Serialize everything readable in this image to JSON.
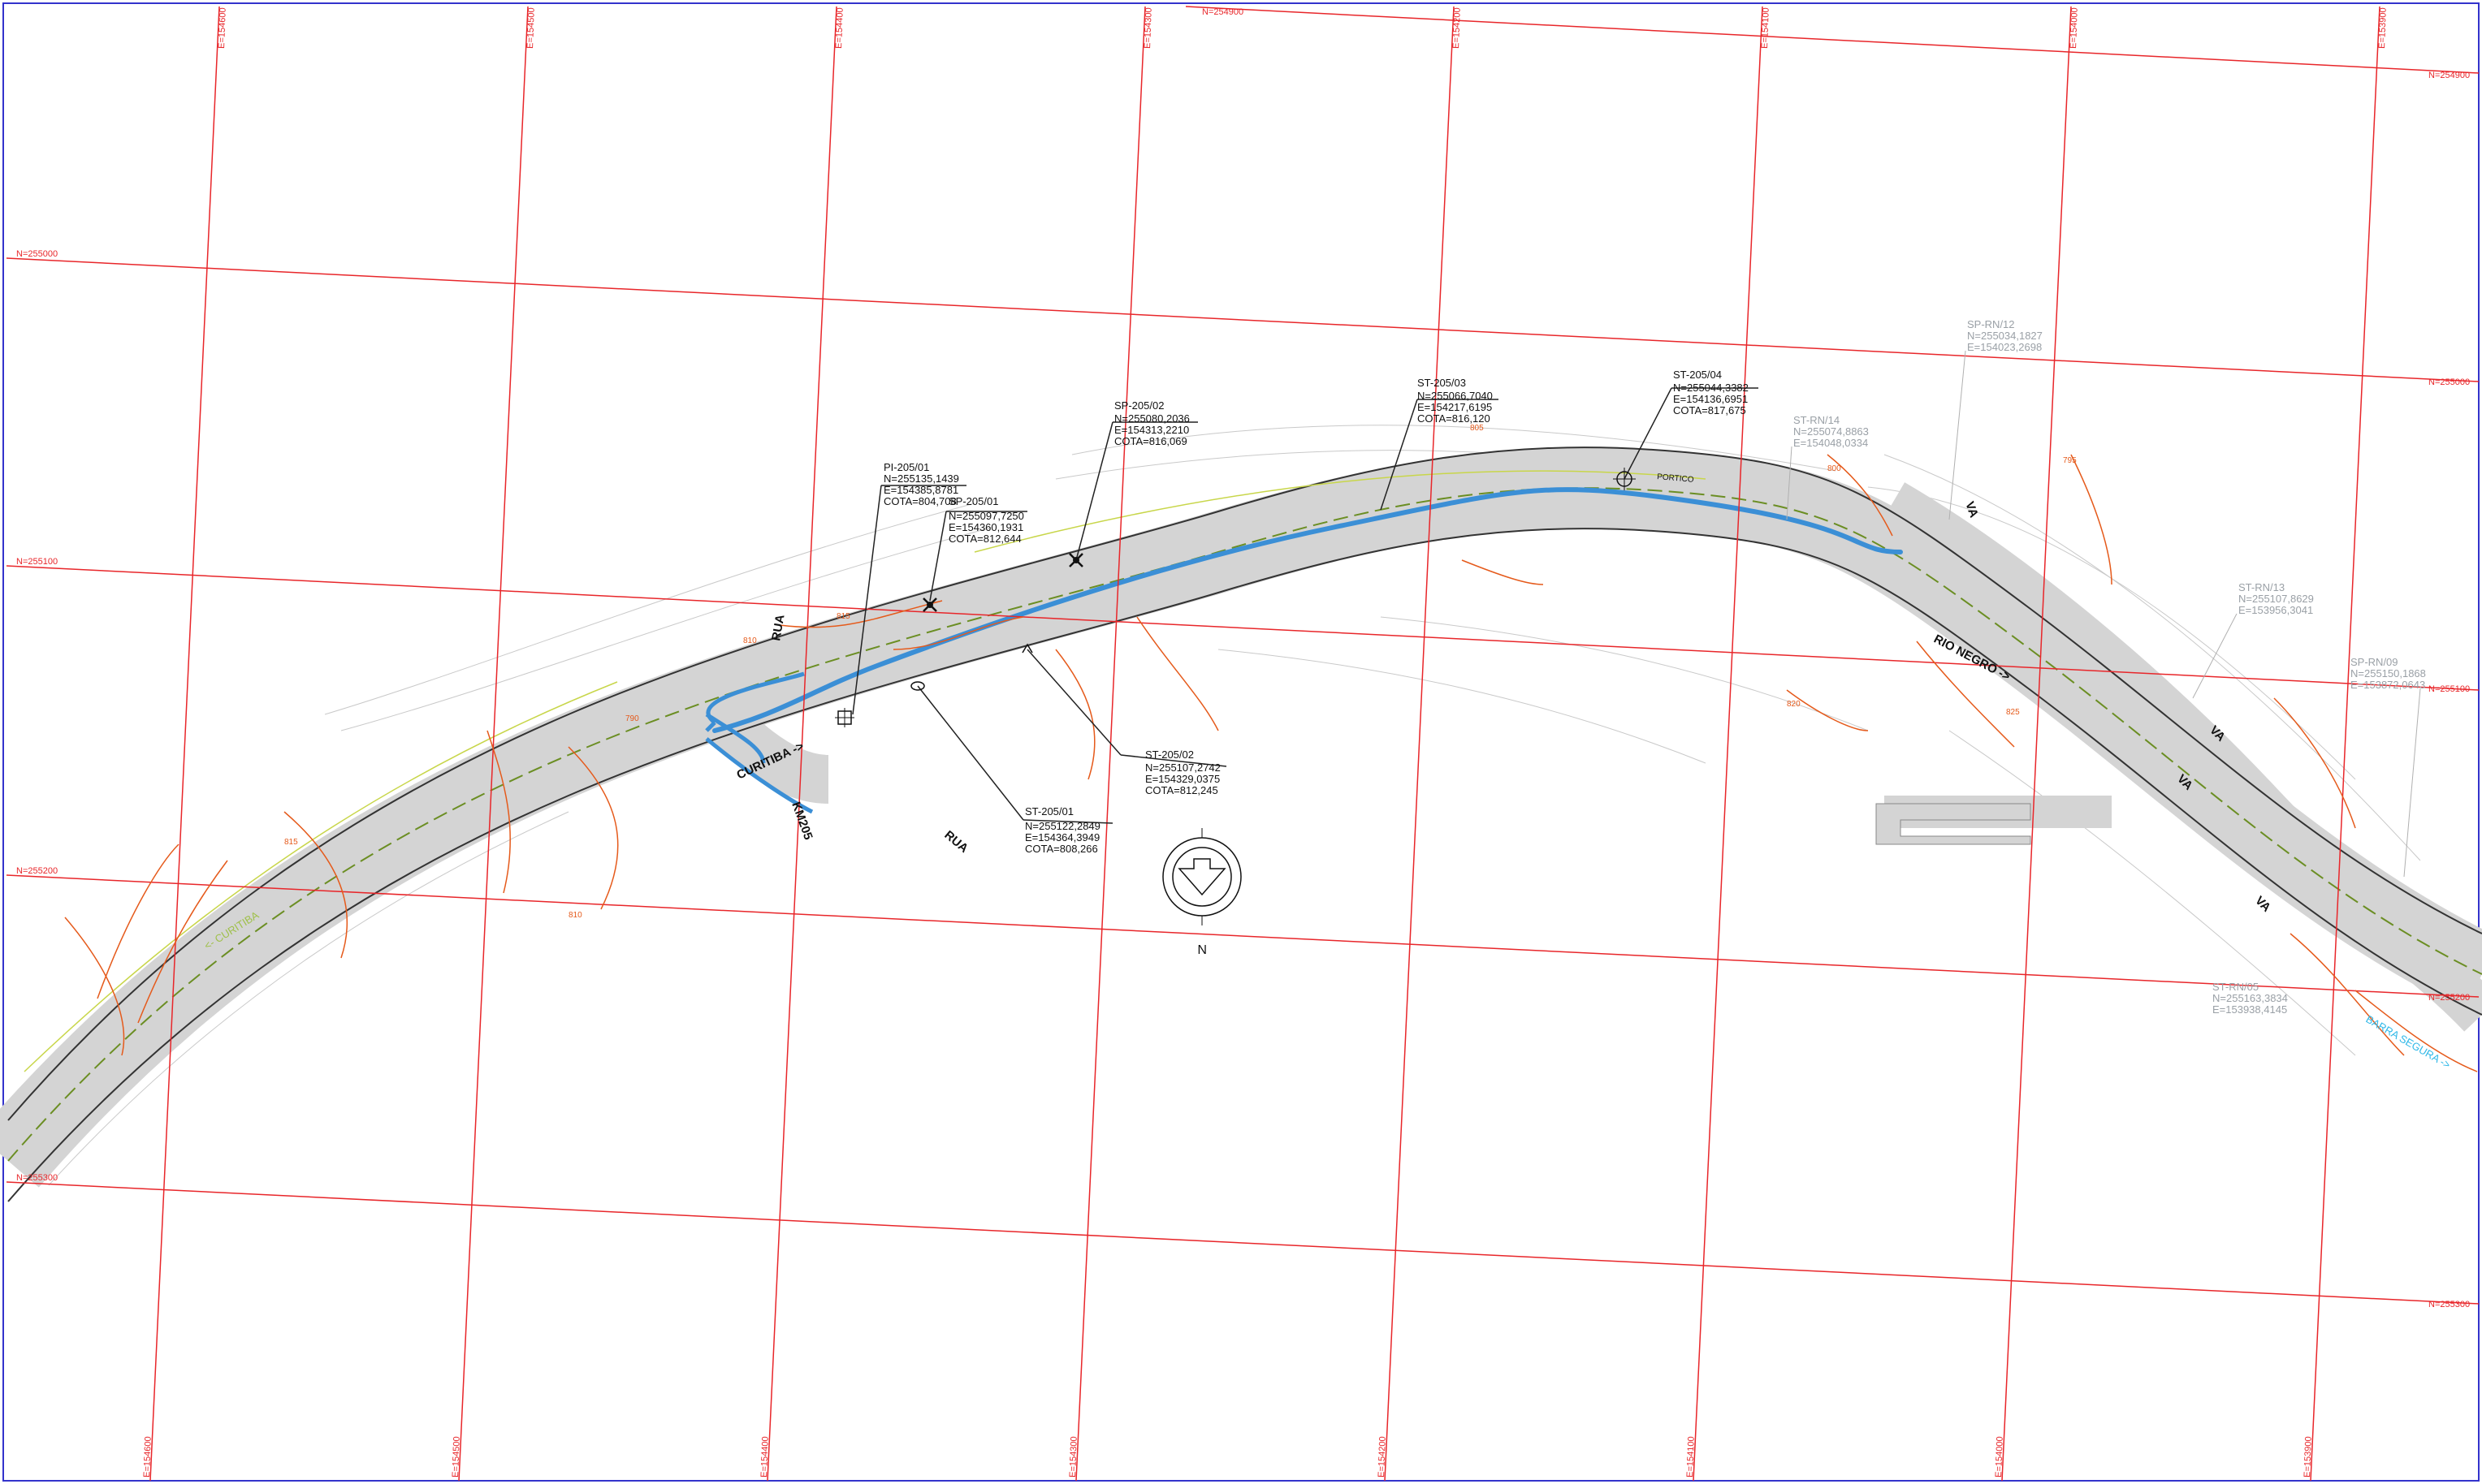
{
  "grid": {
    "north_labels": [
      "N=254900",
      "N=255000",
      "N=255100",
      "N=255200",
      "N=255300"
    ],
    "east_labels": [
      "E=154600",
      "E=154500",
      "E=154400",
      "E=154300",
      "E=154200",
      "E=154100",
      "E=154000",
      "E=153900"
    ]
  },
  "points": [
    {
      "id": "PI-205/01",
      "lines": [
        "PI-205/01",
        "N=255135,1439",
        "E=154385,8781",
        "COTA=804,708"
      ]
    },
    {
      "id": "SP-205/01",
      "lines": [
        "SP-205/01",
        "N=255097,7250",
        "E=154360,1931",
        "COTA=812,644"
      ]
    },
    {
      "id": "SP-205/02",
      "lines": [
        "SP-205/02",
        "N=255080,2036",
        "E=154313,2210",
        "COTA=816,069"
      ]
    },
    {
      "id": "ST-205/03",
      "lines": [
        "ST-205/03",
        "N=255066,7040",
        "E=154217,6195",
        "COTA=816,120"
      ]
    },
    {
      "id": "ST-205/04",
      "lines": [
        "ST-205/04",
        "N=255044,3382",
        "E=154136,6951",
        "COTA=817,675"
      ]
    },
    {
      "id": "ST-205/02",
      "lines": [
        "ST-205/02",
        "N=255107,2742",
        "E=154329,0375",
        "COTA=812,245"
      ]
    },
    {
      "id": "ST-205/01",
      "lines": [
        "ST-205/01",
        "N=255122,2849",
        "E=154364,3949",
        "COTA=808,266"
      ]
    }
  ],
  "faded_points": [
    {
      "id": "SP-RN/12",
      "lines": [
        "SP-RN/12",
        "N=255034,1827",
        "E=154023,2698"
      ]
    },
    {
      "id": "ST-RN/14",
      "lines": [
        "ST-RN/14",
        "N=255074,8863",
        "E=154048,0334"
      ]
    },
    {
      "id": "ST-RN/13",
      "lines": [
        "ST-RN/13",
        "N=255107,8629",
        "E=153956,3041"
      ]
    },
    {
      "id": "SP-RN/09",
      "lines": [
        "SP-RN/09",
        "N=255150,1868",
        "E=153872,0643"
      ]
    },
    {
      "id": "ST-RN/05",
      "lines": [
        "ST-RN/05",
        "N=255163,3834",
        "E=153938,4145"
      ]
    }
  ],
  "road_labels": {
    "curitiba": "CURITIBA ->",
    "rio_negro": "RIO NEGRO ->",
    "rua_left": "RUA",
    "rua_bottom": "RUA",
    "km_marker": "KM205",
    "curitiba_small": "<- CURITIBA",
    "va_1": "VA",
    "va_2": "VA",
    "va_3": "VA",
    "va_4": "VA",
    "portico": "PORTICO",
    "barra_segura": "BARRA SEGURA ->"
  },
  "contours": [
    "815",
    "810",
    "805",
    "800",
    "795",
    "790",
    "820",
    "825",
    "815",
    "810"
  ],
  "north_arrow": "N",
  "colors": {
    "grid": "#e8262a",
    "contour": "#e55a1b",
    "road": "#d4d4d4",
    "curb": "#3b8fd6",
    "frame": "#3333cc"
  }
}
